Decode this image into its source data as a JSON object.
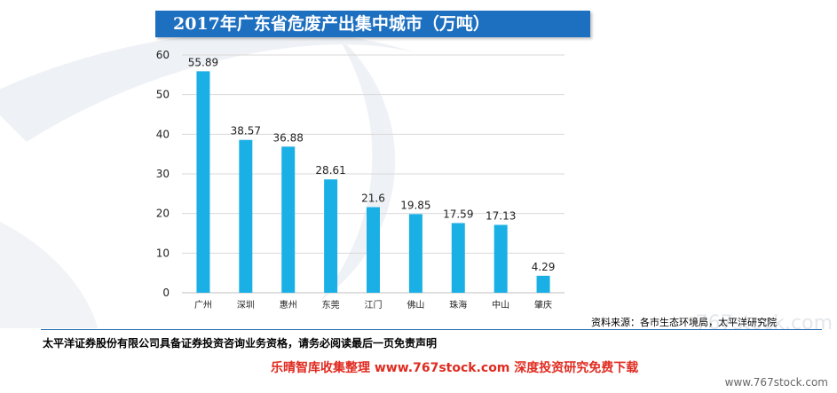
{
  "title": "2017年广东省危废产出集中城市（万吨）",
  "source_note": "资料来源：各市生态环境局，太平洋研究院",
  "disclaimer": "太平洋证券股份有限公司具备证券投资咨询业务资格，请务必阅读最后一页免责声明",
  "footer_tag": "乐晴智库收集整理 www.767stock.com 深度投资研究免费下载",
  "site_mark": "www.767stock.com",
  "watermark": "767stock.com",
  "colors": {
    "bar": "#1ab0e6",
    "title_bg": "#1d6fc0",
    "grid": "#d9d9d9"
  },
  "chart_data": {
    "type": "bar",
    "title": "2017年广东省危废产出集中城市（万吨）",
    "categories": [
      "广州",
      "深圳",
      "惠州",
      "东莞",
      "江门",
      "佛山",
      "珠海",
      "中山",
      "肇庆"
    ],
    "values": [
      55.89,
      38.57,
      36.88,
      28.61,
      21.6,
      19.85,
      17.59,
      17.13,
      4.29
    ],
    "value_labels": [
      "55.89",
      "38.57",
      "36.88",
      "28.61",
      "21.6",
      "19.85",
      "17.59",
      "17.13",
      "4.29"
    ],
    "ylim": [
      0,
      60
    ],
    "yticks": [
      0,
      10,
      20,
      30,
      40,
      50,
      60
    ],
    "grid": true,
    "legend": "none"
  }
}
